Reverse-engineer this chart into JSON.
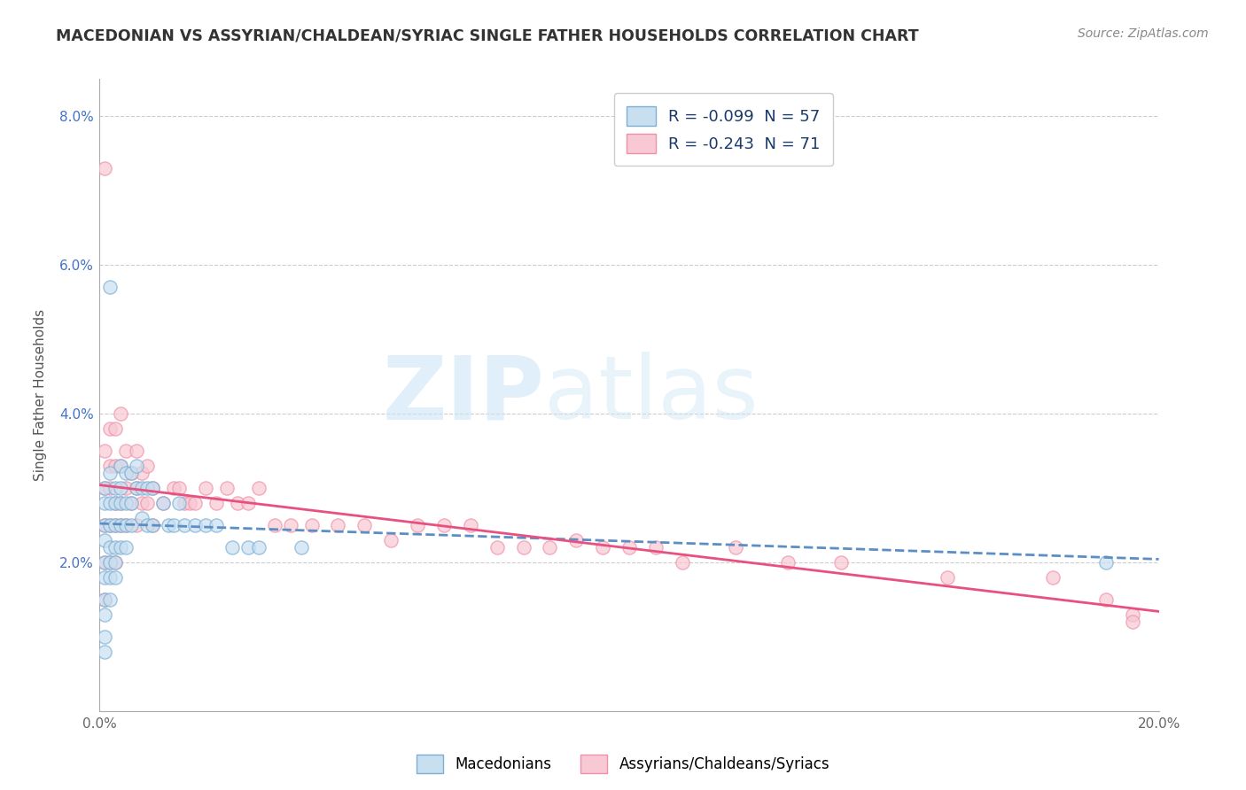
{
  "title": "MACEDONIAN VS ASSYRIAN/CHALDEAN/SYRIAC SINGLE FATHER HOUSEHOLDS CORRELATION CHART",
  "source": "Source: ZipAtlas.com",
  "ylabel": "Single Father Households",
  "xlim": [
    0.0,
    0.2
  ],
  "ylim": [
    0.0,
    0.085
  ],
  "xticks": [
    0.0,
    0.05,
    0.1,
    0.15,
    0.2
  ],
  "xticklabels": [
    "0.0%",
    "",
    "",
    "",
    "20.0%"
  ],
  "yticks": [
    0.0,
    0.02,
    0.04,
    0.06,
    0.08
  ],
  "yticklabels": [
    "",
    "2.0%",
    "4.0%",
    "6.0%",
    "8.0%"
  ],
  "macedonian_color": "#7bafd4",
  "assyrian_color": "#f090a8",
  "watermark_text": "ZIPatlas",
  "background_color": "#ffffff",
  "macedonian_x": [
    0.001,
    0.001,
    0.001,
    0.001,
    0.001,
    0.001,
    0.001,
    0.001,
    0.001,
    0.001,
    0.002,
    0.002,
    0.002,
    0.002,
    0.002,
    0.002,
    0.002,
    0.002,
    0.003,
    0.003,
    0.003,
    0.003,
    0.003,
    0.003,
    0.004,
    0.004,
    0.004,
    0.004,
    0.004,
    0.005,
    0.005,
    0.005,
    0.005,
    0.006,
    0.006,
    0.006,
    0.007,
    0.007,
    0.008,
    0.008,
    0.009,
    0.009,
    0.01,
    0.01,
    0.012,
    0.013,
    0.014,
    0.015,
    0.016,
    0.018,
    0.02,
    0.022,
    0.025,
    0.028,
    0.03,
    0.038,
    0.19
  ],
  "macedonian_y": [
    0.03,
    0.028,
    0.025,
    0.023,
    0.02,
    0.018,
    0.015,
    0.013,
    0.01,
    0.008,
    0.032,
    0.028,
    0.025,
    0.022,
    0.02,
    0.018,
    0.015,
    0.057,
    0.03,
    0.028,
    0.025,
    0.022,
    0.02,
    0.018,
    0.033,
    0.03,
    0.028,
    0.025,
    0.022,
    0.032,
    0.028,
    0.025,
    0.022,
    0.032,
    0.028,
    0.025,
    0.033,
    0.03,
    0.03,
    0.026,
    0.03,
    0.025,
    0.03,
    0.025,
    0.028,
    0.025,
    0.025,
    0.028,
    0.025,
    0.025,
    0.025,
    0.025,
    0.022,
    0.022,
    0.022,
    0.022,
    0.02
  ],
  "assyrian_x": [
    0.001,
    0.001,
    0.001,
    0.001,
    0.001,
    0.001,
    0.002,
    0.002,
    0.002,
    0.002,
    0.002,
    0.003,
    0.003,
    0.003,
    0.003,
    0.003,
    0.004,
    0.004,
    0.004,
    0.004,
    0.005,
    0.005,
    0.005,
    0.006,
    0.006,
    0.007,
    0.007,
    0.007,
    0.008,
    0.008,
    0.009,
    0.009,
    0.01,
    0.01,
    0.012,
    0.014,
    0.015,
    0.016,
    0.017,
    0.018,
    0.02,
    0.022,
    0.024,
    0.026,
    0.028,
    0.03,
    0.033,
    0.036,
    0.04,
    0.045,
    0.05,
    0.055,
    0.06,
    0.065,
    0.07,
    0.075,
    0.08,
    0.085,
    0.09,
    0.095,
    0.1,
    0.105,
    0.11,
    0.12,
    0.13,
    0.14,
    0.16,
    0.18,
    0.19,
    0.195,
    0.195
  ],
  "assyrian_y": [
    0.073,
    0.035,
    0.03,
    0.025,
    0.02,
    0.015,
    0.038,
    0.033,
    0.03,
    0.025,
    0.02,
    0.038,
    0.033,
    0.028,
    0.025,
    0.02,
    0.04,
    0.033,
    0.028,
    0.025,
    0.035,
    0.03,
    0.025,
    0.032,
    0.028,
    0.035,
    0.03,
    0.025,
    0.032,
    0.028,
    0.033,
    0.028,
    0.03,
    0.025,
    0.028,
    0.03,
    0.03,
    0.028,
    0.028,
    0.028,
    0.03,
    0.028,
    0.03,
    0.028,
    0.028,
    0.03,
    0.025,
    0.025,
    0.025,
    0.025,
    0.025,
    0.023,
    0.025,
    0.025,
    0.025,
    0.022,
    0.022,
    0.022,
    0.023,
    0.022,
    0.022,
    0.022,
    0.02,
    0.022,
    0.02,
    0.02,
    0.018,
    0.018,
    0.015,
    0.013,
    0.012
  ]
}
